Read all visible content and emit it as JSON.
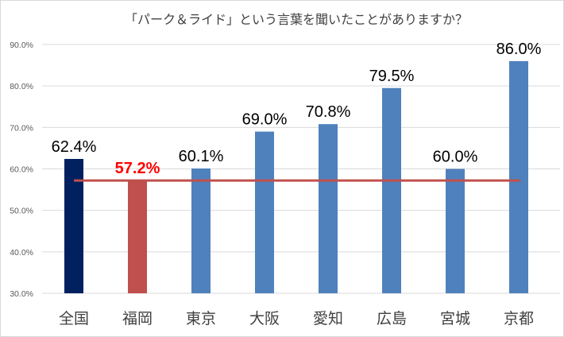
{
  "chart_data": {
    "type": "bar",
    "title": "「パーク＆ライド」という言葉を聞いたことがありますか？",
    "categories": [
      "全国",
      "福岡",
      "東京",
      "大阪",
      "愛知",
      "広島",
      "宮城",
      "京都"
    ],
    "values": [
      62.4,
      57.2,
      60.1,
      69.0,
      70.8,
      79.5,
      60.0,
      86.0
    ],
    "data_labels": [
      "62.4%",
      "57.2%",
      "60.1%",
      "69.0%",
      "70.8%",
      "79.5%",
      "60.0%",
      "86.0%"
    ],
    "bar_colors": [
      "#002060",
      "#C0504D",
      "#4F81BD",
      "#4F81BD",
      "#4F81BD",
      "#4F81BD",
      "#4F81BD",
      "#4F81BD"
    ],
    "highlight_label_color": "#FF0000",
    "reference_line": {
      "value": 57.2,
      "color": "#C0504D"
    },
    "ylim": [
      30,
      90
    ],
    "yticks": [
      30,
      40,
      50,
      60,
      70,
      80,
      90
    ],
    "ytick_labels": [
      "30.0%",
      "40.0%",
      "50.0%",
      "60.0%",
      "70.0%",
      "80.0%",
      "90.0%"
    ],
    "grid": true,
    "xlabel": "",
    "ylabel": ""
  }
}
